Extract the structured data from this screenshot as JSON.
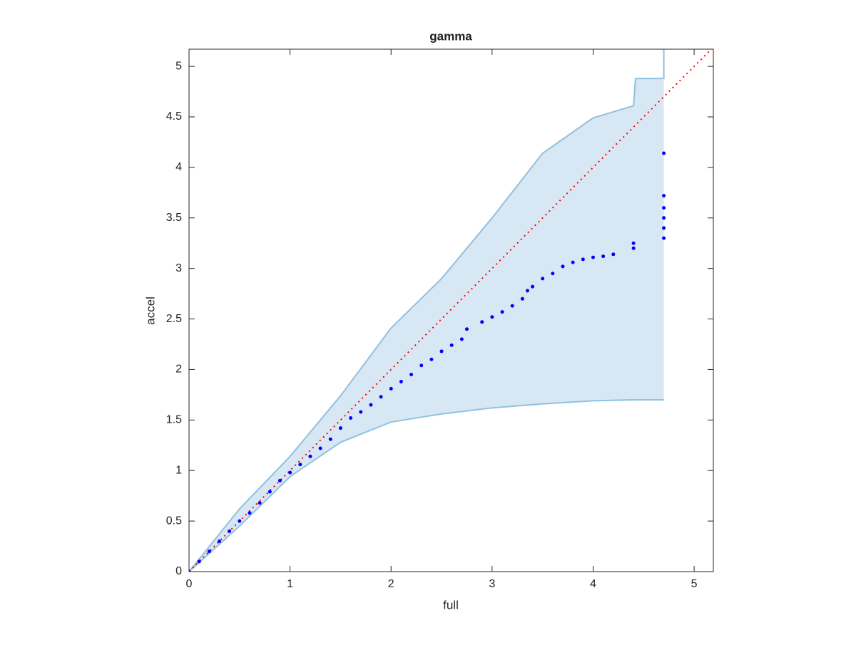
{
  "chart_data": {
    "type": "scatter",
    "title": "gamma",
    "xlabel": "full",
    "ylabel": "accel",
    "xlim": [
      0,
      5.19
    ],
    "ylim": [
      0,
      5.17
    ],
    "xticks": [
      0,
      1,
      2,
      3,
      4,
      5
    ],
    "yticks": [
      0,
      0.5,
      1,
      1.5,
      2,
      2.5,
      3,
      3.5,
      4,
      4.5,
      5
    ],
    "points": {
      "color": "#0000ff",
      "x": [
        0,
        0.1,
        0.2,
        0.3,
        0.4,
        0.5,
        0.6,
        0.7,
        0.8,
        0.9,
        1.0,
        1.1,
        1.2,
        1.3,
        1.4,
        1.5,
        1.6,
        1.7,
        1.8,
        1.9,
        2.0,
        2.1,
        2.2,
        2.3,
        2.4,
        2.5,
        2.6,
        2.7,
        2.75,
        2.9,
        3.0,
        3.1,
        3.2,
        3.3,
        3.35,
        3.4,
        3.5,
        3.6,
        3.7,
        3.8,
        3.9,
        4.0,
        4.1,
        4.2,
        4.4,
        4.4,
        4.7,
        4.7,
        4.7,
        4.7,
        4.7,
        4.7
      ],
      "values": [
        0,
        0.1,
        0.2,
        0.3,
        0.4,
        0.5,
        0.58,
        0.68,
        0.79,
        0.9,
        0.98,
        1.06,
        1.14,
        1.22,
        1.31,
        1.42,
        1.52,
        1.58,
        1.65,
        1.73,
        1.81,
        1.88,
        1.95,
        2.04,
        2.1,
        2.18,
        2.24,
        2.3,
        2.4,
        2.47,
        2.52,
        2.57,
        2.63,
        2.7,
        2.78,
        2.82,
        2.9,
        2.95,
        3.02,
        3.06,
        3.09,
        3.11,
        3.12,
        3.14,
        3.2,
        3.25,
        3.3,
        3.4,
        3.5,
        3.6,
        3.72,
        4.14
      ]
    },
    "band": {
      "fill": "#d8e7f4",
      "edge": "#8fc1e0",
      "x": [
        0,
        0.5,
        1,
        1.5,
        2,
        2.5,
        3,
        3.5,
        4,
        4.4,
        4.42,
        4.7,
        4.7
      ],
      "upper": [
        0,
        0.62,
        1.14,
        1.74,
        2.41,
        2.9,
        3.5,
        4.14,
        4.49,
        4.61,
        4.88,
        4.88,
        5.17
      ],
      "lower": [
        0,
        0.45,
        0.94,
        1.28,
        1.48,
        1.56,
        1.62,
        1.66,
        1.69,
        1.7,
        1.7,
        1.7,
        1.7
      ]
    },
    "reference": {
      "color": "#ff0000",
      "x": [
        0,
        5.17
      ],
      "values": [
        0,
        5.17
      ]
    },
    "box": true
  }
}
